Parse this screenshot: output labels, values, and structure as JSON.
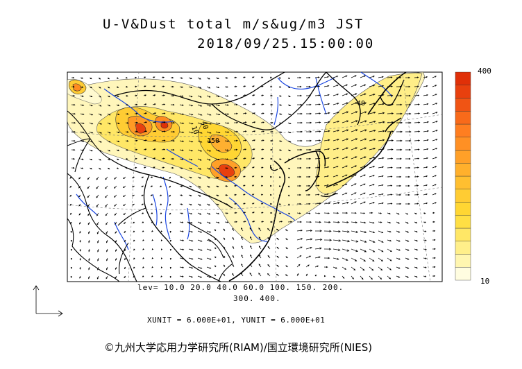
{
  "title": {
    "line1": "U-V&Dust total m/s&ug/m3 JST",
    "line2": "2018/09/25.15:00:00"
  },
  "contour_levels": {
    "line1": "lev= 10.0 20.0 40.0 60.0 100. 150. 200.",
    "line2": "300. 400."
  },
  "contour_labels": [
    "40",
    "150",
    "10",
    "40"
  ],
  "units": "XUNIT = 6.000E+01, YUNIT = 6.000E+01",
  "colorbar": {
    "max_label": "400",
    "min_label": "10",
    "colors": [
      "#fffde0",
      "#fff6b0",
      "#ffef8a",
      "#ffe766",
      "#ffdf44",
      "#ffd633",
      "#ffcc33",
      "#ffbf30",
      "#ffb02c",
      "#ffa028",
      "#ff9024",
      "#ff7e20",
      "#f86a1a",
      "#f05414",
      "#e8400e",
      "#e03008"
    ]
  },
  "copyright": "©九州大学応用力学研究所(RIAM)/国立環境研究所(NIES)"
}
